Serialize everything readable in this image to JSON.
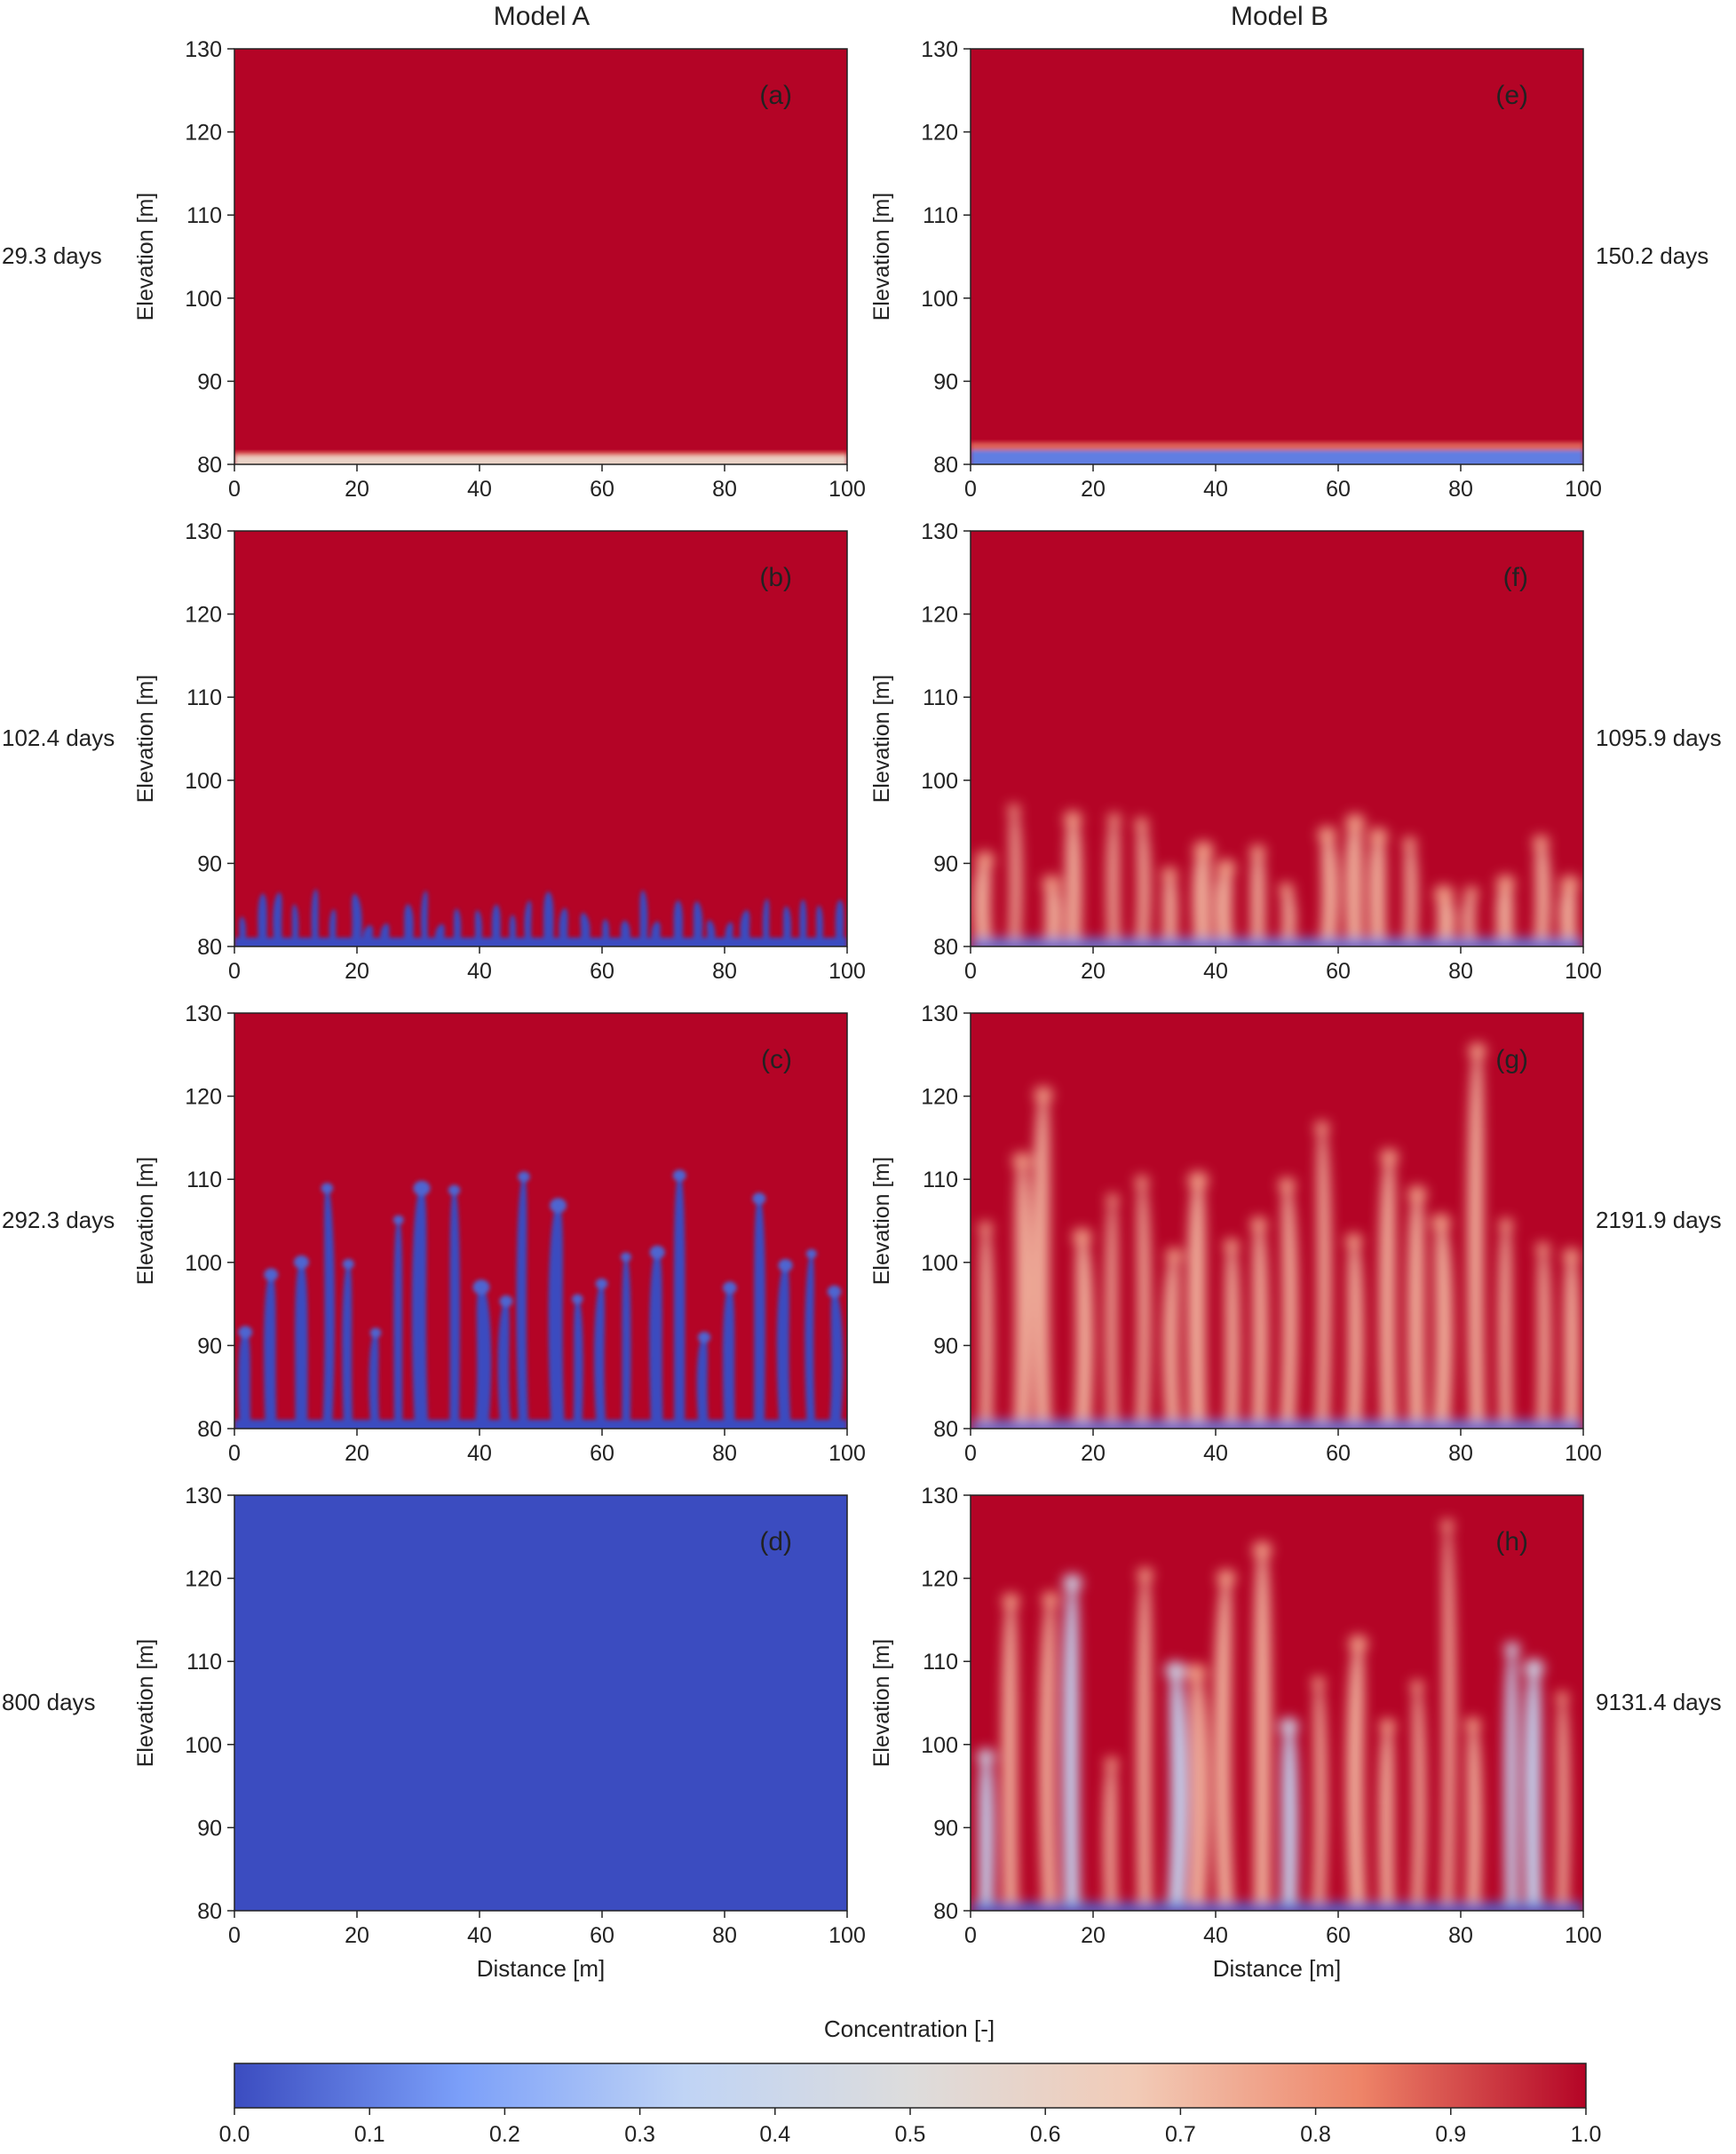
{
  "figure": {
    "column_titles": [
      "Model A",
      "Model B"
    ],
    "colorbar_label": "Concentration [-]",
    "colorbar_ticks": [
      "0.0",
      "0.1",
      "0.2",
      "0.3",
      "0.4",
      "0.5",
      "0.6",
      "0.7",
      "0.8",
      "0.9",
      "1.0"
    ],
    "colormap_stops": [
      "#3b4cc0",
      "#7b9ff9",
      "#c0d4f5",
      "#dddcdc",
      "#f2cbb7",
      "#ee8468",
      "#b40426"
    ]
  },
  "chart_data": [
    {
      "type": "heatmap",
      "panel": "(a)",
      "model": "Model A",
      "time_label": "29.3 days",
      "xlabel": "",
      "ylabel": "Elevation [m]",
      "x_ticks": [
        "0",
        "20",
        "40",
        "60",
        "80",
        "100"
      ],
      "y_ticks": [
        "130",
        "120",
        "110",
        "100",
        "90",
        "80"
      ],
      "xlim": [
        0,
        100
      ],
      "ylim": [
        80,
        130
      ],
      "front_height": 1,
      "interior_level": 1.0,
      "bottom_level": 0.6,
      "fingering": "none"
    },
    {
      "type": "heatmap",
      "panel": "(b)",
      "model": "Model A",
      "time_label": "102.4 days",
      "xlabel": "",
      "ylabel": "Elevation [m]",
      "x_ticks": [
        "0",
        "20",
        "40",
        "60",
        "80",
        "100"
      ],
      "y_ticks": [
        "130",
        "120",
        "110",
        "100",
        "90",
        "80"
      ],
      "xlim": [
        0,
        100
      ],
      "ylim": [
        80,
        130
      ],
      "front_height": 7,
      "interior_level": 1.0,
      "bottom_level": 0.0,
      "fingering": "short"
    },
    {
      "type": "heatmap",
      "panel": "(c)",
      "model": "Model A",
      "time_label": "292.3 days",
      "xlabel": "",
      "ylabel": "Elevation [m]",
      "x_ticks": [
        "0",
        "20",
        "40",
        "60",
        "80",
        "100"
      ],
      "y_ticks": [
        "130",
        "120",
        "110",
        "100",
        "90",
        "80"
      ],
      "xlim": [
        0,
        100
      ],
      "ylim": [
        80,
        130
      ],
      "front_height": 31,
      "interior_level": 1.0,
      "bottom_level": 0.0,
      "fingering": "developed"
    },
    {
      "type": "heatmap",
      "panel": "(d)",
      "model": "Model A",
      "time_label": "800 days",
      "xlabel": "Distance [m]",
      "ylabel": "Elevation [m]",
      "x_ticks": [
        "0",
        "20",
        "40",
        "60",
        "80",
        "100"
      ],
      "y_ticks": [
        "130",
        "120",
        "110",
        "100",
        "90",
        "80"
      ],
      "xlim": [
        0,
        100
      ],
      "ylim": [
        80,
        130
      ],
      "front_height": 50,
      "interior_level": 0.0,
      "bottom_level": 0.0,
      "fingering": "uniform"
    },
    {
      "type": "heatmap",
      "panel": "(e)",
      "model": "Model B",
      "time_label": "150.2 days",
      "xlabel": "",
      "ylabel": "Elevation [m]",
      "x_ticks": [
        "0",
        "20",
        "40",
        "60",
        "80",
        "100"
      ],
      "y_ticks": [
        "130",
        "120",
        "110",
        "100",
        "90",
        "80"
      ],
      "xlim": [
        0,
        100
      ],
      "ylim": [
        80,
        130
      ],
      "front_height": 2,
      "interior_level": 1.0,
      "bottom_level": 0.1,
      "fingering": "none"
    },
    {
      "type": "heatmap",
      "panel": "(f)",
      "model": "Model B",
      "time_label": "1095.9 days",
      "xlabel": "",
      "ylabel": "Elevation [m]",
      "x_ticks": [
        "0",
        "20",
        "40",
        "60",
        "80",
        "100"
      ],
      "y_ticks": [
        "130",
        "120",
        "110",
        "100",
        "90",
        "80"
      ],
      "xlim": [
        0,
        100
      ],
      "ylim": [
        80,
        130
      ],
      "front_height": 17,
      "interior_level": 1.0,
      "bottom_level": 0.1,
      "fingering": "diffuse"
    },
    {
      "type": "heatmap",
      "panel": "(g)",
      "model": "Model B",
      "time_label": "2191.9 days",
      "xlabel": "",
      "ylabel": "Elevation [m]",
      "x_ticks": [
        "0",
        "20",
        "40",
        "60",
        "80",
        "100"
      ],
      "y_ticks": [
        "130",
        "120",
        "110",
        "100",
        "90",
        "80"
      ],
      "xlim": [
        0,
        100
      ],
      "ylim": [
        80,
        130
      ],
      "front_height": 48,
      "interior_level": 1.0,
      "bottom_level": 0.1,
      "fingering": "diffuse"
    },
    {
      "type": "heatmap",
      "panel": "(h)",
      "model": "Model B",
      "time_label": "9131.4 days",
      "xlabel": "Distance [m]",
      "ylabel": "Elevation [m]",
      "x_ticks": [
        "0",
        "20",
        "40",
        "60",
        "80",
        "100"
      ],
      "y_ticks": [
        "130",
        "120",
        "110",
        "100",
        "90",
        "80"
      ],
      "xlim": [
        0,
        100
      ],
      "ylim": [
        80,
        130
      ],
      "front_height": 50,
      "interior_level": 1.0,
      "bottom_level": 0.05,
      "fingering": "mixed"
    }
  ]
}
